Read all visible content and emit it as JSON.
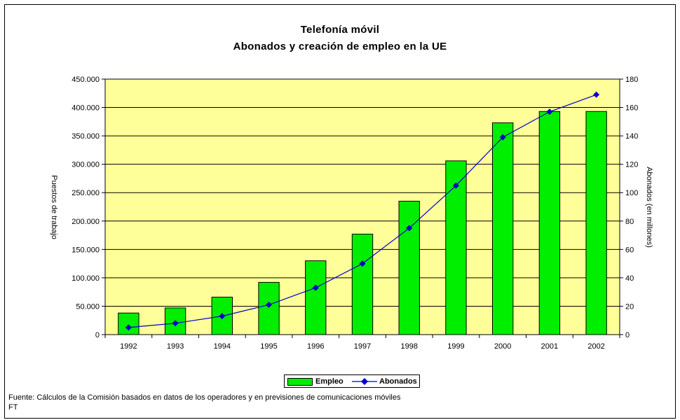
{
  "chart_data": {
    "type": "bar+line",
    "title": "Telefonía móvil",
    "subtitle": "Abonados y creación de empleo en la UE",
    "categories": [
      "1992",
      "1993",
      "1994",
      "1995",
      "1996",
      "1997",
      "1998",
      "1999",
      "2000",
      "2001",
      "2002"
    ],
    "series": [
      {
        "name": "Empleo",
        "type": "bar",
        "axis": "left",
        "values": [
          38000,
          47000,
          66000,
          92000,
          130000,
          177000,
          235000,
          306000,
          373000,
          393000,
          393000
        ],
        "color": "#00ee00"
      },
      {
        "name": "Abonados",
        "type": "line",
        "axis": "right",
        "values": [
          5,
          8,
          13,
          21,
          33,
          50,
          75,
          105,
          139,
          157,
          169
        ],
        "color": "#0000cc"
      }
    ],
    "ylabel_left": "Puestos de trabajo",
    "ylabel_right": "Abonados (en millones)",
    "ylim_left": [
      0,
      450000
    ],
    "ylim_right": [
      0,
      180
    ],
    "left_ticks": [
      "0",
      "50.000",
      "100.000",
      "150.000",
      "200.000",
      "250.000",
      "300.000",
      "350.000",
      "400.000",
      "450.000"
    ],
    "right_ticks": [
      "0",
      "20",
      "40",
      "60",
      "80",
      "100",
      "120",
      "140",
      "160",
      "180"
    ],
    "plot_background": "#ffff99",
    "grid": true,
    "legend_position": "bottom"
  },
  "source_note": "Fuente: Cálculos de la Comisión basados en datos de los operadores y en previsiones de comunicaciones móviles FT"
}
